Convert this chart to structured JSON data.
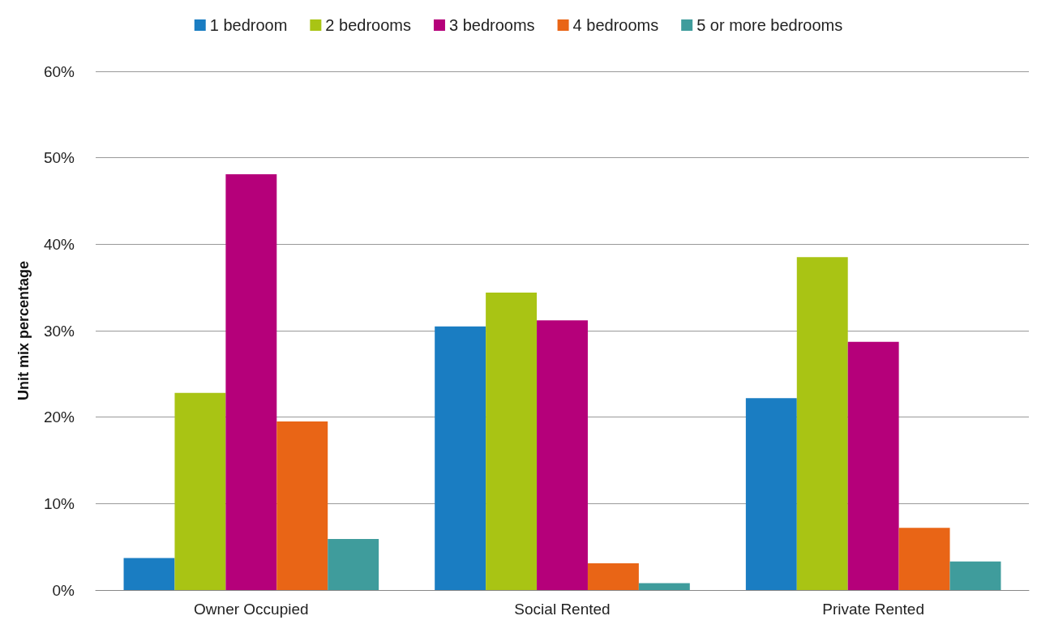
{
  "chart_data": {
    "type": "bar",
    "ylabel": "Unit mix percentage",
    "categories": [
      "Owner Occupied",
      "Social Rented",
      "Private Rented"
    ],
    "series": [
      {
        "name": "1 bedroom",
        "color": "#1a7dc2",
        "values": [
          3.7,
          30.5,
          22.2
        ]
      },
      {
        "name": "2 bedrooms",
        "color": "#a9c414",
        "values": [
          22.8,
          34.4,
          38.5
        ]
      },
      {
        "name": "3 bedrooms",
        "color": "#b5007a",
        "values": [
          48.1,
          31.2,
          28.7
        ]
      },
      {
        "name": "4 bedrooms",
        "color": "#e96516",
        "values": [
          19.5,
          3.1,
          7.2
        ]
      },
      {
        "name": "5 or more bedrooms",
        "color": "#3f9c9c",
        "values": [
          5.9,
          0.8,
          3.3
        ]
      }
    ],
    "ylim": [
      0,
      60
    ],
    "yticks": [
      {
        "value": 0,
        "label": "0%"
      },
      {
        "value": 10,
        "label": "10%"
      },
      {
        "value": 20,
        "label": "20%"
      },
      {
        "value": 30,
        "label": "30%"
      },
      {
        "value": 40,
        "label": "40%"
      },
      {
        "value": 50,
        "label": "50%"
      },
      {
        "value": 60,
        "label": "60%"
      }
    ],
    "grid": "y",
    "legend": "top"
  }
}
